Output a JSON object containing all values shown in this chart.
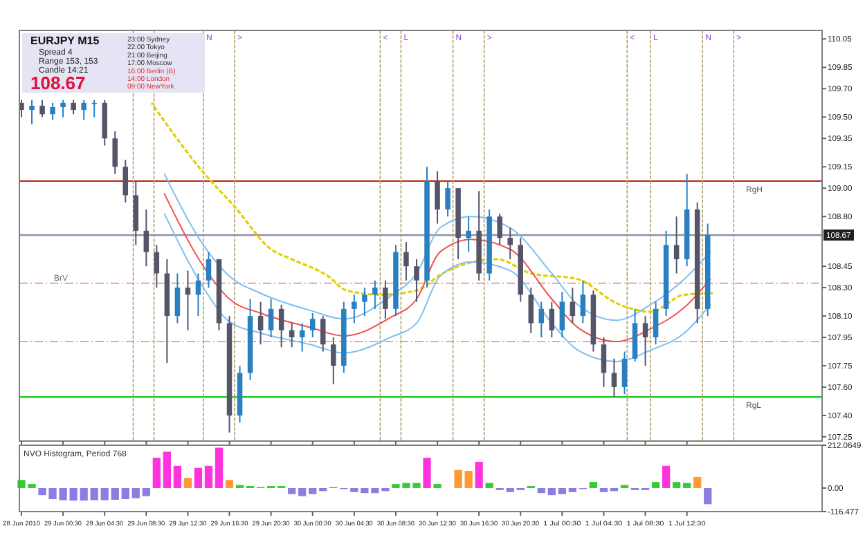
{
  "chart_data": [
    {
      "type": "candlestick",
      "title": "EURJPY  M15",
      "annotations": [
        "Spread  4",
        "Range  153, 153",
        "Candle  14:21",
        "108.67",
        "23:00  Sydney",
        "22:00  Tokyo",
        "21:00  Beijing",
        "17:00  Moscow",
        "16:00  Berlin (B)",
        "14:00  London",
        "09:00  NewYork"
      ],
      "x": [
        "2010-06-28T20:30",
        "2010-06-28T21:30",
        "2010-06-28T22:30",
        "2010-06-28T23:30",
        "2010-06-29T00:30",
        "2010-06-29T01:30",
        "2010-06-29T02:30",
        "2010-06-29T03:30",
        "2010-06-29T04:30",
        "2010-06-29T05:30",
        "2010-06-29T06:30",
        "2010-06-29T07:30",
        "2010-06-29T08:30",
        "2010-06-29T09:30",
        "2010-06-29T10:30",
        "2010-06-29T11:30",
        "2010-06-29T12:30",
        "2010-06-29T13:30",
        "2010-06-29T14:30",
        "2010-06-29T15:30",
        "2010-06-29T16:30",
        "2010-06-29T17:30",
        "2010-06-29T18:30",
        "2010-06-29T19:30",
        "2010-06-29T20:30",
        "2010-06-29T21:30",
        "2010-06-29T22:30",
        "2010-06-29T23:30",
        "2010-06-30T00:30",
        "2010-06-30T01:30",
        "2010-06-30T02:30",
        "2010-06-30T03:30",
        "2010-06-30T04:30",
        "2010-06-30T05:30",
        "2010-06-30T06:30",
        "2010-06-30T07:30",
        "2010-06-30T08:30",
        "2010-06-30T09:30",
        "2010-06-30T10:30",
        "2010-06-30T11:30",
        "2010-06-30T12:30",
        "2010-06-30T13:30",
        "2010-06-30T14:30",
        "2010-06-30T15:30",
        "2010-06-30T16:30",
        "2010-06-30T17:30",
        "2010-06-30T18:30",
        "2010-06-30T19:30",
        "2010-06-30T20:30",
        "2010-06-30T21:30",
        "2010-06-30T22:30",
        "2010-06-30T23:30",
        "2010-07-01T00:30",
        "2010-07-01T01:30",
        "2010-07-01T02:30",
        "2010-07-01T03:30",
        "2010-07-01T04:30",
        "2010-07-01T05:30",
        "2010-07-01T06:30",
        "2010-07-01T07:30",
        "2010-07-01T08:30",
        "2010-07-01T09:30",
        "2010-07-01T10:30",
        "2010-07-01T11:30",
        "2010-07-01T12:30",
        "2010-07-01T13:30",
        "2010-07-01T14:30"
      ],
      "ohlc": [
        [
          109.6,
          109.62,
          109.5,
          109.55
        ],
        [
          109.55,
          109.62,
          109.45,
          109.58
        ],
        [
          109.58,
          109.62,
          109.5,
          109.52
        ],
        [
          109.52,
          109.6,
          109.48,
          109.57
        ],
        [
          109.57,
          109.62,
          109.5,
          109.6
        ],
        [
          109.6,
          109.62,
          109.52,
          109.55
        ],
        [
          109.55,
          109.62,
          109.48,
          109.6
        ],
        [
          109.6,
          109.62,
          109.5,
          109.6
        ],
        [
          109.6,
          109.62,
          109.3,
          109.35
        ],
        [
          109.35,
          109.4,
          109.1,
          109.15
        ],
        [
          109.15,
          109.2,
          108.9,
          108.95
        ],
        [
          108.95,
          109.05,
          108.6,
          108.7
        ],
        [
          108.7,
          108.85,
          108.45,
          108.55
        ],
        [
          108.55,
          108.6,
          108.3,
          108.4
        ],
        [
          108.4,
          108.5,
          107.77,
          108.1
        ],
        [
          108.1,
          108.4,
          108.05,
          108.3
        ],
        [
          108.3,
          108.42,
          108.0,
          108.25
        ],
        [
          108.25,
          108.4,
          108.1,
          108.35
        ],
        [
          108.35,
          108.55,
          108.3,
          108.5
        ],
        [
          108.5,
          108.5,
          108.0,
          108.05
        ],
        [
          108.05,
          108.1,
          107.28,
          107.4
        ],
        [
          107.4,
          107.75,
          107.35,
          107.7
        ],
        [
          107.7,
          108.22,
          107.65,
          108.1
        ],
        [
          108.1,
          108.2,
          107.9,
          108.0
        ],
        [
          108.0,
          108.22,
          107.95,
          108.15
        ],
        [
          108.15,
          108.18,
          107.88,
          108.0
        ],
        [
          108.0,
          108.05,
          107.88,
          107.95
        ],
        [
          107.95,
          108.05,
          107.85,
          108.0
        ],
        [
          108.0,
          108.12,
          107.95,
          108.08
        ],
        [
          108.08,
          108.1,
          107.85,
          107.9
        ],
        [
          107.9,
          107.95,
          107.62,
          107.75
        ],
        [
          107.75,
          108.2,
          107.7,
          108.15
        ],
        [
          108.15,
          108.25,
          108.05,
          108.2
        ],
        [
          108.2,
          108.3,
          108.1,
          108.25
        ],
        [
          108.25,
          108.35,
          108.15,
          108.3
        ],
        [
          108.3,
          108.35,
          108.08,
          108.15
        ],
        [
          108.15,
          108.6,
          108.1,
          108.55
        ],
        [
          108.55,
          108.62,
          108.35,
          108.45
        ],
        [
          108.45,
          108.5,
          108.2,
          108.35
        ],
        [
          108.35,
          109.15,
          108.3,
          109.05
        ],
        [
          109.05,
          109.12,
          108.75,
          108.85
        ],
        [
          108.85,
          109.05,
          108.8,
          109.0
        ],
        [
          109.0,
          109.0,
          108.5,
          108.65
        ],
        [
          108.65,
          108.8,
          108.55,
          108.7
        ],
        [
          108.7,
          108.98,
          108.35,
          108.4
        ],
        [
          108.4,
          108.85,
          108.35,
          108.8
        ],
        [
          108.8,
          108.82,
          108.6,
          108.65
        ],
        [
          108.65,
          108.72,
          108.5,
          108.6
        ],
        [
          108.6,
          108.65,
          108.2,
          108.25
        ],
        [
          108.25,
          108.3,
          107.98,
          108.05
        ],
        [
          108.05,
          108.2,
          107.95,
          108.15
        ],
        [
          108.15,
          108.2,
          107.95,
          108.0
        ],
        [
          108.0,
          108.27,
          107.95,
          108.2
        ],
        [
          108.2,
          108.3,
          108.05,
          108.1
        ],
        [
          108.1,
          108.35,
          108.05,
          108.25
        ],
        [
          108.25,
          108.28,
          107.85,
          107.9
        ],
        [
          107.9,
          107.95,
          107.6,
          107.7
        ],
        [
          107.7,
          107.8,
          107.53,
          107.6
        ],
        [
          107.6,
          107.85,
          107.55,
          107.8
        ],
        [
          107.8,
          108.15,
          107.78,
          108.05
        ],
        [
          108.05,
          108.1,
          107.75,
          107.95
        ],
        [
          107.95,
          108.2,
          107.9,
          108.15
        ],
        [
          108.15,
          108.7,
          108.1,
          108.6
        ],
        [
          108.6,
          108.8,
          108.4,
          108.5
        ],
        [
          108.5,
          109.1,
          108.45,
          108.85
        ],
        [
          108.85,
          108.9,
          108.05,
          108.15
        ],
        [
          108.15,
          108.75,
          108.1,
          108.67
        ]
      ],
      "colors": [
        "#55556a",
        "#2a7fc0",
        "#55556a",
        "#2a7fc0",
        "#2a7fc0",
        "#55556a",
        "#2a7fc0",
        "#2a7fc0",
        "#55556a",
        "#55556a",
        "#55556a",
        "#55556a",
        "#55556a",
        "#55556a",
        "#55556a",
        "#2a7fc0",
        "#55556a",
        "#2a7fc0",
        "#2a7fc0",
        "#55556a",
        "#55556a",
        "#2a7fc0",
        "#2a7fc0",
        "#55556a",
        "#2a7fc0",
        "#55556a",
        "#55556a",
        "#2a7fc0",
        "#2a7fc0",
        "#55556a",
        "#55556a",
        "#2a7fc0",
        "#2a7fc0",
        "#2a7fc0",
        "#2a7fc0",
        "#55556a",
        "#2a7fc0",
        "#55556a",
        "#55556a",
        "#2a7fc0",
        "#55556a",
        "#2a7fc0",
        "#55556a",
        "#2a7fc0",
        "#55556a",
        "#2a7fc0",
        "#55556a",
        "#55556a",
        "#55556a",
        "#55556a",
        "#2a7fc0",
        "#55556a",
        "#2a7fc0",
        "#55556a",
        "#2a7fc0",
        "#55556a",
        "#55556a",
        "#55556a",
        "#2a7fc0",
        "#2a7fc0",
        "#55556a",
        "#2a7fc0",
        "#2a7fc0",
        "#55556a",
        "#2a7fc0",
        "#55556a",
        "#2a7fc0"
      ],
      "series": [
        {
          "type": "line",
          "color": "#e0d000",
          "line_style": "dashed",
          "x": [
            "2010-06-29T09:00",
            "2010-06-29T14:00",
            "2010-06-29T17:00",
            "2010-06-29T20:30",
            "2010-06-29T22:30",
            "2010-06-30T02:00",
            "2010-06-30T03:45",
            "2010-06-30T07:00",
            "2010-06-30T10:30",
            "2010-06-30T13:00",
            "2010-06-30T18:15",
            "2010-06-30T21:30",
            "2010-07-01T02:00",
            "2010-07-01T05:45",
            "2010-07-01T09:00",
            "2010-07-01T12:15",
            "2010-07-01T15:00"
          ],
          "values": [
            109.6,
            109.11,
            108.87,
            108.57,
            108.5,
            108.38,
            108.28,
            108.25,
            108.28,
            108.4,
            108.5,
            108.4,
            108.36,
            108.19,
            108.13,
            108.25,
            108.26
          ]
        },
        {
          "type": "line",
          "color": "#7ec0f0",
          "line_style": "solid",
          "x": [
            "2010-06-29T10:15",
            "2010-06-29T14:00",
            "2010-06-29T16:30",
            "2010-06-29T19:30",
            "2010-06-30T00:15",
            "2010-06-30T03:30",
            "2010-06-30T08:00",
            "2010-06-30T10:30",
            "2010-06-30T12:45",
            "2010-06-30T15:45",
            "2010-06-30T19:30",
            "2010-06-30T23:30",
            "2010-07-01T02:00",
            "2010-07-01T05:45",
            "2010-07-01T09:00",
            "2010-07-01T12:15",
            "2010-07-01T14:45"
          ],
          "values": [
            109.1,
            108.6,
            108.38,
            108.26,
            108.14,
            108.08,
            108.24,
            108.4,
            108.72,
            108.8,
            108.72,
            108.4,
            108.18,
            108.07,
            108.18,
            108.36,
            108.55
          ]
        },
        {
          "type": "line",
          "color": "#f05050",
          "line_style": "solid",
          "x": [
            "2010-06-29T10:15",
            "2010-06-29T14:00",
            "2010-06-29T16:30",
            "2010-06-29T19:30",
            "2010-06-30T00:15",
            "2010-06-30T03:30",
            "2010-06-30T08:00",
            "2010-06-30T10:30",
            "2010-06-30T12:45",
            "2010-06-30T15:45",
            "2010-06-30T19:30",
            "2010-06-30T23:30",
            "2010-07-01T02:00",
            "2010-07-01T05:45",
            "2010-07-01T09:00",
            "2010-07-01T12:15",
            "2010-07-01T14:45"
          ],
          "values": [
            108.96,
            108.45,
            108.22,
            108.12,
            108.02,
            107.96,
            108.09,
            108.22,
            108.55,
            108.64,
            108.57,
            108.22,
            108.02,
            107.92,
            108.01,
            108.16,
            108.36
          ]
        },
        {
          "type": "line",
          "color": "#7ec0f0",
          "line_style": "solid",
          "x": [
            "2010-06-29T10:15",
            "2010-06-29T14:00",
            "2010-06-29T16:30",
            "2010-06-29T19:30",
            "2010-06-30T00:15",
            "2010-06-30T03:30",
            "2010-06-30T08:00",
            "2010-06-30T10:30",
            "2010-06-30T12:45",
            "2010-06-30T15:45",
            "2010-06-30T19:30",
            "2010-06-30T23:30",
            "2010-07-01T02:00",
            "2010-07-01T05:45",
            "2010-07-01T09:00",
            "2010-07-01T12:15",
            "2010-07-01T14:45"
          ],
          "values": [
            108.82,
            108.3,
            108.06,
            107.98,
            107.9,
            107.84,
            107.95,
            108.05,
            108.38,
            108.48,
            108.42,
            108.05,
            107.86,
            107.78,
            107.86,
            107.98,
            108.18
          ]
        }
      ],
      "ref_lines": [
        {
          "axis": "y",
          "value": 109.05,
          "label": "RgH",
          "color": "#c03020",
          "line_style": "solid"
        },
        {
          "axis": "y",
          "value": 107.53,
          "label": "RgL",
          "color": "#22cc22",
          "line_style": "solid"
        },
        {
          "axis": "y",
          "value": 108.33,
          "label": "BrV",
          "color": "#f0a0a0",
          "line_style": "dashdot"
        },
        {
          "axis": "y",
          "value": 107.92,
          "label": null,
          "color": "#f0a0a0",
          "line_style": "dashdot"
        },
        {
          "axis": "y",
          "value": 108.67,
          "label": "108.67",
          "color": "#9090b0",
          "line_style": "solid"
        },
        {
          "axis": "x",
          "value": "2010-06-29T07:15",
          "label": null,
          "color": "#b0a070",
          "line_style": "dashed"
        },
        {
          "axis": "x",
          "value": "2010-06-29T09:15",
          "label": null,
          "color": "#b0a070",
          "line_style": "dashed"
        },
        {
          "axis": "x",
          "value": "2010-06-29T14:00",
          "label": "N",
          "color": "#b0a070",
          "line_style": "dashed"
        },
        {
          "axis": "x",
          "value": "2010-06-29T17:00",
          "label": ">",
          "color": "#b0a070",
          "line_style": "dashed"
        },
        {
          "axis": "x",
          "value": "2010-06-30T07:00",
          "label": "<",
          "color": "#b0a070",
          "line_style": "dashed"
        },
        {
          "axis": "x",
          "value": "2010-06-30T09:00",
          "label": "L",
          "color": "#b0a070",
          "line_style": "dashed"
        },
        {
          "axis": "x",
          "value": "2010-06-30T14:00",
          "label": "N",
          "color": "#b0a070",
          "line_style": "dashed"
        },
        {
          "axis": "x",
          "value": "2010-06-30T17:00",
          "label": ">",
          "color": "#b0a070",
          "line_style": "dashed"
        },
        {
          "axis": "x",
          "value": "2010-07-01T06:45",
          "label": "<",
          "color": "#b0a070",
          "line_style": "dashed"
        },
        {
          "axis": "x",
          "value": "2010-07-01T09:00",
          "label": "L",
          "color": "#b0a070",
          "line_style": "dashed"
        },
        {
          "axis": "x",
          "value": "2010-07-01T14:00",
          "label": "N",
          "color": "#b0a070",
          "line_style": "dashed"
        },
        {
          "axis": "x",
          "value": "2010-07-01T17:00",
          "label": ">",
          "color": "#b0a070",
          "line_style": "dashed"
        }
      ],
      "xlim": [
        "2010-06-28T20:18",
        "2010-07-02T01:30"
      ],
      "xticks": [
        {
          "value": "2010-06-28T20:30",
          "label": null
        },
        {
          "value": "2010-06-29T00:30",
          "label": null
        },
        {
          "value": "2010-06-29T04:30",
          "label": null
        },
        {
          "value": "2010-06-29T08:30",
          "label": null
        },
        {
          "value": "2010-06-29T12:30",
          "label": null
        },
        {
          "value": "2010-06-29T16:30",
          "label": null
        },
        {
          "value": "2010-06-29T20:30",
          "label": null
        },
        {
          "value": "2010-06-30T00:30",
          "label": null
        },
        {
          "value": "2010-06-30T04:30",
          "label": null
        },
        {
          "value": "2010-06-30T08:30",
          "label": null
        },
        {
          "value": "2010-06-30T12:30",
          "label": null
        },
        {
          "value": "2010-06-30T16:30",
          "label": null
        },
        {
          "value": "2010-06-30T20:30",
          "label": null
        },
        {
          "value": "2010-07-01T00:30",
          "label": null
        },
        {
          "value": "2010-07-01T04:30",
          "label": null
        },
        {
          "value": "2010-07-01T08:30",
          "label": null
        },
        {
          "value": "2010-07-01T12:30",
          "label": null
        }
      ],
      "ylim": [
        107.22,
        110.11
      ],
      "yticks": [
        110.05,
        109.85,
        {
          "value": 109.7,
          "label": "109.70"
        },
        {
          "value": 109.5,
          "label": "109.50"
        },
        109.35,
        109.15,
        {
          "value": 109,
          "label": "109.00"
        },
        {
          "value": 108.8,
          "label": "108.80"
        },
        108.45,
        {
          "value": 108.3,
          "label": "108.30"
        },
        {
          "value": 108.1,
          "label": "108.10"
        },
        107.95,
        107.75,
        {
          "value": 107.6,
          "label": "107.60"
        },
        {
          "value": 107.4,
          "label": "107.40"
        },
        107.25
      ],
      "tick_labels": "y"
    },
    {
      "type": "bar",
      "title": "NVO Histogram, Period 768",
      "x": [
        "2010-06-28T20:30",
        "2010-06-28T21:30",
        "2010-06-28T22:30",
        "2010-06-28T23:30",
        "2010-06-29T00:30",
        "2010-06-29T01:30",
        "2010-06-29T02:30",
        "2010-06-29T03:30",
        "2010-06-29T04:30",
        "2010-06-29T05:30",
        "2010-06-29T06:30",
        "2010-06-29T07:30",
        "2010-06-29T08:30",
        "2010-06-29T09:30",
        "2010-06-29T10:30",
        "2010-06-29T11:30",
        "2010-06-29T12:30",
        "2010-06-29T13:30",
        "2010-06-29T14:30",
        "2010-06-29T15:30",
        "2010-06-29T16:30",
        "2010-06-29T17:30",
        "2010-06-29T18:30",
        "2010-06-29T19:30",
        "2010-06-29T20:30",
        "2010-06-29T21:30",
        "2010-06-29T22:30",
        "2010-06-29T23:30",
        "2010-06-30T00:30",
        "2010-06-30T01:30",
        "2010-06-30T02:30",
        "2010-06-30T03:30",
        "2010-06-30T04:30",
        "2010-06-30T05:30",
        "2010-06-30T06:30",
        "2010-06-30T07:30",
        "2010-06-30T08:30",
        "2010-06-30T09:30",
        "2010-06-30T10:30",
        "2010-06-30T11:30",
        "2010-06-30T12:30",
        "2010-06-30T13:30",
        "2010-06-30T14:30",
        "2010-06-30T15:30",
        "2010-06-30T16:30",
        "2010-06-30T17:30",
        "2010-06-30T18:30",
        "2010-06-30T19:30",
        "2010-06-30T20:30",
        "2010-06-30T21:30",
        "2010-06-30T22:30",
        "2010-06-30T23:30",
        "2010-07-01T00:30",
        "2010-07-01T01:30",
        "2010-07-01T02:30",
        "2010-07-01T03:30",
        "2010-07-01T04:30",
        "2010-07-01T05:30",
        "2010-07-01T06:30",
        "2010-07-01T07:30",
        "2010-07-01T08:30",
        "2010-07-01T09:30",
        "2010-07-01T10:30",
        "2010-07-01T11:30",
        "2010-07-01T12:30",
        "2010-07-01T13:30",
        "2010-07-01T14:30"
      ],
      "values": [
        40,
        20,
        -35,
        -55,
        -60,
        -62,
        -62,
        -60,
        -60,
        -58,
        -55,
        -50,
        -40,
        150,
        180,
        110,
        50,
        100,
        110,
        200,
        40,
        15,
        10,
        5,
        10,
        10,
        -30,
        -40,
        -30,
        -15,
        5,
        -5,
        -20,
        -25,
        -25,
        -15,
        20,
        25,
        25,
        150,
        20,
        0,
        90,
        85,
        130,
        25,
        -10,
        -20,
        -10,
        10,
        -25,
        -35,
        -30,
        -20,
        -5,
        30,
        -20,
        -15,
        15,
        -10,
        -10,
        30,
        110,
        30,
        25,
        55,
        -80
      ],
      "colors": [
        "#33cc33",
        "#33cc33",
        "#8a7fe0",
        "#8a7fe0",
        "#8a7fe0",
        "#8a7fe0",
        "#8a7fe0",
        "#8a7fe0",
        "#8a7fe0",
        "#8a7fe0",
        "#8a7fe0",
        "#8a7fe0",
        "#8a7fe0",
        "#ff33dd",
        "#ff33dd",
        "#ff33dd",
        "#ff9933",
        "#ff33dd",
        "#ff33dd",
        "#ff33dd",
        "#ff9933",
        "#33cc33",
        "#33cc33",
        "#33cc33",
        "#33cc33",
        "#33cc33",
        "#8a7fe0",
        "#8a7fe0",
        "#8a7fe0",
        "#8a7fe0",
        "#33cc33",
        "#8a7fe0",
        "#8a7fe0",
        "#8a7fe0",
        "#8a7fe0",
        "#8a7fe0",
        "#33cc33",
        "#33cc33",
        "#33cc33",
        "#ff33dd",
        "#33cc33",
        "#33cc33",
        "#ff9933",
        "#ff9933",
        "#ff33dd",
        "#33cc33",
        "#8a7fe0",
        "#8a7fe0",
        "#8a7fe0",
        "#33cc33",
        "#8a7fe0",
        "#8a7fe0",
        "#8a7fe0",
        "#8a7fe0",
        "#8a7fe0",
        "#33cc33",
        "#8a7fe0",
        "#8a7fe0",
        "#33cc33",
        "#8a7fe0",
        "#8a7fe0",
        "#33cc33",
        "#ff33dd",
        "#33cc33",
        "#33cc33",
        "#ff9933",
        "#8a7fe0"
      ],
      "xlim": [
        "2010-06-28T20:18",
        "2010-07-02T01:30"
      ],
      "xticks": [
        {
          "value": "2010-06-28T20:30",
          "label": "28 Jun 2010"
        },
        {
          "value": "2010-06-29T00:30",
          "label": "29 Jun 00:30"
        },
        {
          "value": "2010-06-29T04:30",
          "label": "29 Jun 04:30"
        },
        {
          "value": "2010-06-29T08:30",
          "label": "29 Jun 08:30"
        },
        {
          "value": "2010-06-29T12:30",
          "label": "29 Jun 12:30"
        },
        {
          "value": "2010-06-29T16:30",
          "label": "29 Jun 16:30"
        },
        {
          "value": "2010-06-29T20:30",
          "label": "29 Jun 20:30"
        },
        {
          "value": "2010-06-30T00:30",
          "label": "30 Jun 00:30"
        },
        {
          "value": "2010-06-30T04:30",
          "label": "30 Jun 04:30"
        },
        {
          "value": "2010-06-30T08:30",
          "label": "30 Jun 08:30"
        },
        {
          "value": "2010-06-30T12:30",
          "label": "30 Jun 12:30"
        },
        {
          "value": "2010-06-30T16:30",
          "label": "30 Jun 16:30"
        },
        {
          "value": "2010-06-30T20:30",
          "label": "30 Jun 20:30"
        },
        {
          "value": "2010-07-01T00:30",
          "label": "1 Jul 00:30"
        },
        {
          "value": "2010-07-01T04:30",
          "label": "1 Jul 04:30"
        },
        {
          "value": "2010-07-01T08:30",
          "label": "1 Jul 08:30"
        },
        {
          "value": "2010-07-01T12:30",
          "label": "1 Jul 12:30"
        }
      ],
      "ylim": [
        -116.477,
        212.0649
      ],
      "yticks": [
        212.0649,
        {
          "value": 0,
          "label": "0.00"
        },
        -116.477
      ]
    }
  ]
}
